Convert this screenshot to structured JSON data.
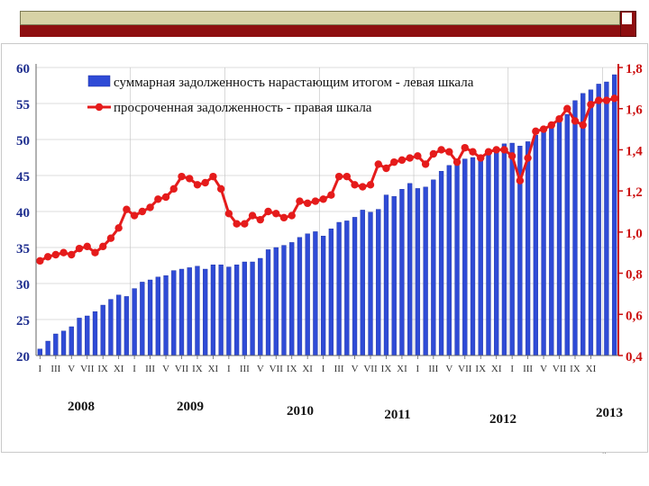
{
  "slide": {
    "footer_mark": "..",
    "colors": {
      "bar_strip": "#d7d2a6",
      "accent_strip": "#8e0e10"
    }
  },
  "chart_data": {
    "type": "bar+line",
    "title": "",
    "legend": [
      {
        "label": "суммарная  задолженность  нарастающим  итогом - левая шкала",
        "kind": "bar",
        "color": "#2f4bd6"
      },
      {
        "label": "просроченная  задолженность  - правая шкала",
        "kind": "line",
        "color": "#e51b1b"
      }
    ],
    "y_left": {
      "min": 20,
      "max": 60,
      "ticks": [
        "20",
        "25",
        "30",
        "35",
        "40",
        "45",
        "50",
        "55",
        "60"
      ]
    },
    "y_right": {
      "min": 0.4,
      "max": 1.8,
      "ticks": [
        "0,4",
        "0,6",
        "0,8",
        "1,0",
        "1,2",
        "1,4",
        "1,6",
        "1,8"
      ]
    },
    "x_month_labels": [
      "I",
      "III",
      "V",
      "VII",
      "IX",
      "XI",
      "I",
      "III",
      "V",
      "VII",
      "IX",
      "XI",
      "I",
      "III",
      "V",
      "VII",
      "IX",
      "XI",
      "I",
      "III",
      "V",
      "VII",
      "IX",
      "XI",
      "I",
      "III",
      "V",
      "VII",
      "IX",
      "XI",
      "I",
      "III",
      "V",
      "VII",
      "IX",
      "XI"
    ],
    "years": [
      "2008",
      "2009",
      "2010",
      "2011",
      "2012",
      "2013"
    ],
    "series": [
      {
        "name": "суммарная задолженность",
        "axis": "left",
        "values": [
          20.9,
          22.0,
          23.0,
          23.4,
          24.0,
          25.2,
          25.5,
          26.1,
          27.0,
          27.8,
          28.4,
          28.2,
          29.3,
          30.2,
          30.5,
          30.9,
          31.1,
          31.8,
          32.0,
          32.2,
          32.4,
          32.0,
          32.6,
          32.6,
          32.3,
          32.6,
          33.0,
          33.0,
          33.5,
          34.7,
          35.0,
          35.3,
          35.7,
          36.4,
          36.9,
          37.2,
          36.6,
          37.6,
          38.5,
          38.7,
          39.2,
          40.2,
          39.9,
          40.3,
          42.3,
          42.1,
          43.1,
          43.9,
          43.2,
          43.4,
          44.4,
          45.6,
          46.4,
          47.0,
          47.3,
          47.5,
          47.6,
          48.6,
          48.8,
          49.4,
          49.5,
          49.1,
          49.7,
          50.6,
          51.1,
          51.7,
          52.5,
          53.5,
          55.4,
          56.4,
          56.9,
          57.7,
          58.0,
          59.0
        ]
      },
      {
        "name": "просроченная задолженность",
        "axis": "right",
        "values": [
          0.86,
          0.88,
          0.89,
          0.9,
          0.89,
          0.92,
          0.93,
          0.9,
          0.93,
          0.97,
          1.02,
          1.11,
          1.08,
          1.1,
          1.12,
          1.16,
          1.17,
          1.21,
          1.27,
          1.26,
          1.23,
          1.24,
          1.27,
          1.21,
          1.09,
          1.04,
          1.04,
          1.08,
          1.06,
          1.1,
          1.09,
          1.07,
          1.08,
          1.15,
          1.14,
          1.15,
          1.16,
          1.18,
          1.27,
          1.27,
          1.23,
          1.22,
          1.23,
          1.33,
          1.31,
          1.34,
          1.35,
          1.36,
          1.37,
          1.33,
          1.38,
          1.4,
          1.39,
          1.34,
          1.41,
          1.39,
          1.36,
          1.39,
          1.4,
          1.4,
          1.37,
          1.25,
          1.36,
          1.49,
          1.5,
          1.52,
          1.55,
          1.6,
          1.54,
          1.52,
          1.62,
          1.64,
          1.64,
          1.65
        ]
      }
    ]
  }
}
